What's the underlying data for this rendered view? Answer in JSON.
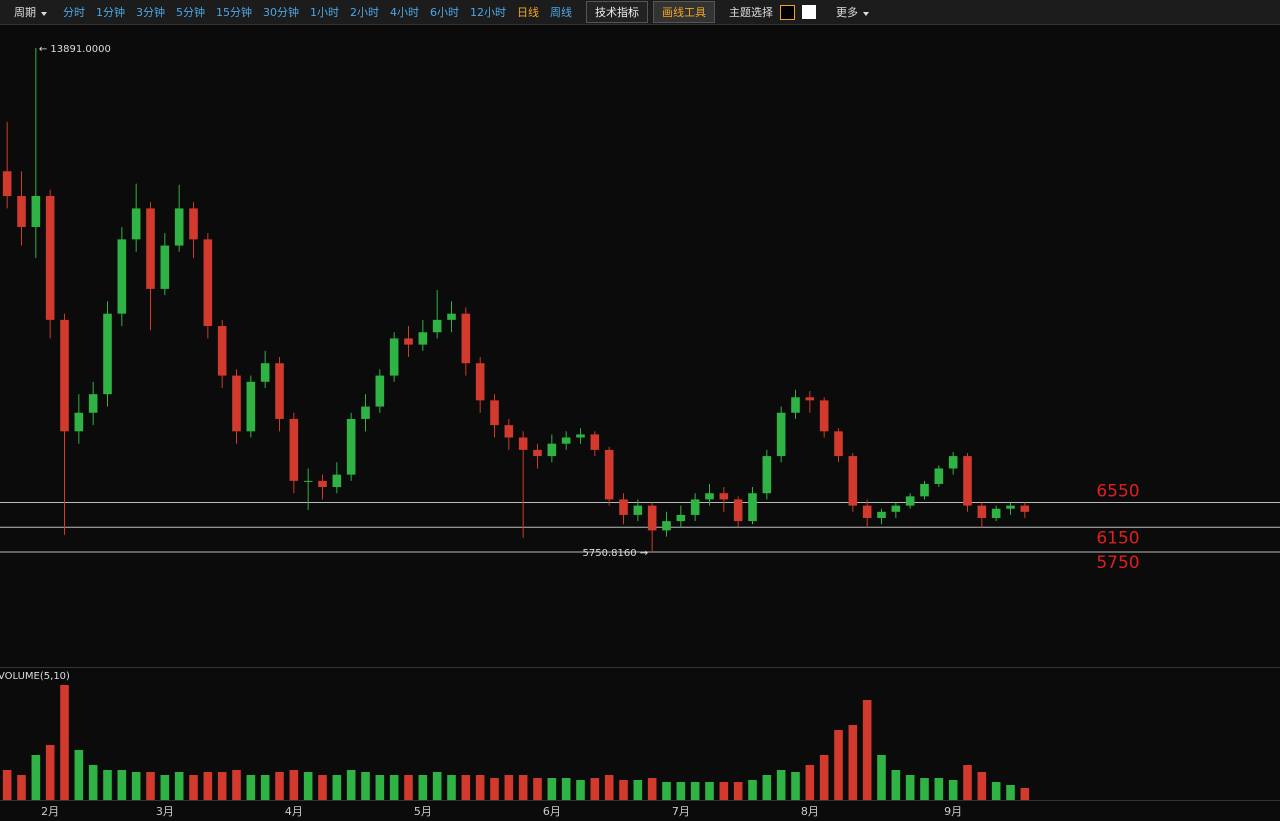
{
  "toolbar": {
    "period": "周期",
    "intervals": [
      "分时",
      "1分钟",
      "3分钟",
      "5分钟",
      "15分钟",
      "30分钟",
      "1小时",
      "2小时",
      "4小时",
      "6小时",
      "12小时",
      "日线",
      "周线"
    ],
    "active_interval": 11,
    "buttons": [
      "技术指标",
      "画线工具"
    ],
    "active_button": 1,
    "theme": "主题选择",
    "more": "更多"
  },
  "chart_data": [
    {
      "type": "candlestick",
      "categories": [
        null,
        null,
        null,
        "2月",
        null,
        null,
        null,
        null,
        null,
        null,
        null,
        "3月",
        null,
        null,
        null,
        null,
        null,
        null,
        null,
        null,
        "4月",
        null,
        null,
        null,
        null,
        null,
        null,
        null,
        null,
        "5月",
        null,
        null,
        null,
        null,
        null,
        null,
        null,
        null,
        "6月",
        null,
        null,
        null,
        null,
        null,
        null,
        null,
        null,
        "7月",
        null,
        null,
        null,
        null,
        null,
        null,
        null,
        null,
        "8月",
        null,
        null,
        null,
        null,
        null,
        null,
        null,
        null,
        null,
        "9月",
        null,
        null,
        null,
        null,
        null
      ],
      "open": [
        11900,
        11500,
        11000,
        11500,
        9500,
        7700,
        8000,
        8300,
        9600,
        10800,
        11300,
        10000,
        10700,
        11300,
        10800,
        9400,
        8600,
        7700,
        8500,
        8800,
        7900,
        6900,
        6900,
        6800,
        7000,
        7900,
        8100,
        8600,
        9200,
        9100,
        9300,
        9500,
        9600,
        8800,
        8200,
        7800,
        7600,
        7400,
        7300,
        7500,
        7600,
        7650,
        7400,
        6600,
        6350,
        6500,
        6100,
        6250,
        6350,
        6600,
        6700,
        6600,
        6250,
        6700,
        7300,
        8000,
        8250,
        8200,
        7700,
        7300,
        6500,
        6300,
        6400,
        6500,
        6650,
        6850,
        7100,
        7300,
        6500,
        6300,
        6450,
        6500
      ],
      "high": [
        12700,
        11900,
        13891,
        11600,
        9600,
        8300,
        8500,
        9800,
        11000,
        11700,
        11400,
        10900,
        11680,
        11400,
        10900,
        9500,
        8700,
        8600,
        9000,
        8900,
        8000,
        7100,
        7000,
        7200,
        8000,
        8300,
        8700,
        9300,
        9400,
        9500,
        9980,
        9800,
        9700,
        8900,
        8300,
        7900,
        7700,
        7500,
        7650,
        7700,
        7750,
        7700,
        7450,
        6700,
        6600,
        6550,
        6400,
        6500,
        6700,
        6850,
        6800,
        6650,
        6800,
        7400,
        8100,
        8370,
        8350,
        8250,
        7750,
        7350,
        6600,
        6450,
        6550,
        6700,
        6900,
        7150,
        7366,
        7350,
        6550,
        6500,
        6550,
        6550
      ],
      "low": [
        11300,
        10700,
        10500,
        9200,
        6030,
        7500,
        7800,
        8100,
        9400,
        10600,
        9330,
        9900,
        10600,
        10500,
        9200,
        8400,
        7500,
        7600,
        8400,
        7700,
        6700,
        6430,
        6600,
        6700,
        6900,
        7700,
        8000,
        8500,
        8900,
        9000,
        9200,
        9300,
        8600,
        8000,
        7600,
        7400,
        5980,
        7100,
        7200,
        7400,
        7500,
        7300,
        6500,
        6200,
        6250,
        5750.816,
        6000,
        6150,
        6250,
        6500,
        6400,
        6150,
        6200,
        6600,
        7200,
        7900,
        8000,
        7600,
        7200,
        6400,
        6150,
        6200,
        6300,
        6450,
        6600,
        6800,
        7000,
        6400,
        6150,
        6250,
        6350,
        6300
      ],
      "close": [
        11500,
        11000,
        11500,
        9500,
        7700,
        8000,
        8300,
        9600,
        10800,
        11300,
        10000,
        10700,
        11300,
        10800,
        9400,
        8600,
        7700,
        8500,
        8800,
        7900,
        6900,
        6900,
        6800,
        7000,
        7900,
        8100,
        8600,
        9200,
        9100,
        9300,
        9500,
        9600,
        8800,
        8200,
        7800,
        7600,
        7400,
        7300,
        7500,
        7600,
        7650,
        7400,
        6600,
        6350,
        6500,
        6100,
        6250,
        6350,
        6600,
        6700,
        6600,
        6250,
        6700,
        7300,
        8000,
        8250,
        8200,
        7700,
        7300,
        6500,
        6300,
        6400,
        6500,
        6650,
        6850,
        7100,
        7300,
        6500,
        6300,
        6450,
        6500,
        6400
      ],
      "ylim": [
        3926,
        14262
      ],
      "up_color": "#2fb344",
      "down_color": "#d13a2c",
      "high_label": "← 13891.0000",
      "low_label": "5750.8160 →",
      "hlines": [
        6550,
        6150,
        5750
      ],
      "hline_color": "#e02020"
    },
    {
      "type": "bar",
      "title": "VOLUME(5,10)",
      "values": [
        30,
        25,
        45,
        55,
        115,
        50,
        35,
        30,
        30,
        28,
        28,
        25,
        28,
        25,
        28,
        28,
        30,
        25,
        25,
        28,
        30,
        28,
        25,
        25,
        30,
        28,
        25,
        25,
        25,
        25,
        28,
        25,
        25,
        25,
        22,
        25,
        25,
        22,
        22,
        22,
        20,
        22,
        25,
        20,
        20,
        22,
        18,
        18,
        18,
        18,
        18,
        18,
        20,
        25,
        30,
        28,
        35,
        45,
        70,
        75,
        100,
        45,
        30,
        25,
        22,
        22,
        20,
        35,
        28,
        18,
        15,
        12
      ],
      "ylim": [
        0,
        120
      ]
    }
  ]
}
